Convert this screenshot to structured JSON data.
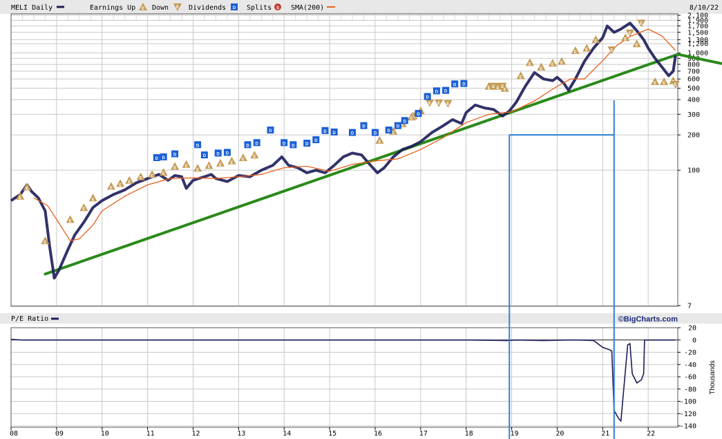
{
  "header": {
    "symbol_label": "MELI Daily",
    "earnings_up_label": "Earnings Up",
    "down_label": "Down",
    "dividends_label": "Dividends",
    "splits_label": "Splits",
    "sma_label": "SMA(200)",
    "date": "8/10/22",
    "earnings_icon": "E",
    "dividend_icon": "D",
    "split_icon": "S"
  },
  "pe_panel": {
    "label": "P/E Ratio",
    "brand": "©BigCharts.com",
    "unit_label": "Thousands"
  },
  "colors": {
    "price": "#1c1c5a",
    "sma": "#e8601c",
    "trendline": "#2a8a1a",
    "annotation": "#2f7fd6",
    "earnings": "#c49a52",
    "dividend": "#1a5fd6",
    "split": "#c0392b",
    "grid": "#c8c8c8",
    "header_bg": "#e8e8e8"
  },
  "chart_data": [
    {
      "type": "line",
      "title": "MELI Daily",
      "scale": "log",
      "ylim": [
        7,
        2100
      ],
      "xlim": [
        2008.0,
        2022.65
      ],
      "x_tick_labels": [
        "08",
        "09",
        "10",
        "11",
        "12",
        "13",
        "14",
        "15",
        "16",
        "17",
        "18",
        "19",
        "20",
        "21",
        "22"
      ],
      "x_ticks": [
        2008,
        2009,
        2010,
        2011,
        2012,
        2013,
        2014,
        2015,
        2016,
        2017,
        2018,
        2019,
        2020,
        2021,
        2022
      ],
      "y_ticks": [
        7,
        100,
        200,
        300,
        400,
        500,
        600,
        700,
        800,
        900,
        1000,
        1200,
        1300,
        1500,
        1700,
        1900,
        2100
      ],
      "y_tick_labels": [
        "7",
        "100",
        "200",
        "300",
        "400",
        "500",
        "600",
        "700",
        "800",
        "900",
        "1,000",
        "1,200",
        "1,300",
        "1,500",
        "1,700",
        "1,900",
        "2,100"
      ],
      "series": [
        {
          "name": "MELI Daily",
          "x": [
            2008.0,
            2008.2,
            2008.35,
            2008.45,
            2008.6,
            2008.75,
            2008.85,
            2008.95,
            2009.05,
            2009.25,
            2009.4,
            2009.6,
            2009.8,
            2010.0,
            2010.25,
            2010.5,
            2010.75,
            2011.0,
            2011.25,
            2011.45,
            2011.6,
            2011.75,
            2011.85,
            2012.0,
            2012.25,
            2012.4,
            2012.5,
            2012.75,
            2013.0,
            2013.25,
            2013.5,
            2013.75,
            2013.95,
            2014.1,
            2014.3,
            2014.5,
            2014.7,
            2014.9,
            2015.1,
            2015.3,
            2015.5,
            2015.7,
            2015.9,
            2016.05,
            2016.2,
            2016.4,
            2016.6,
            2016.8,
            2017.0,
            2017.25,
            2017.5,
            2017.7,
            2017.9,
            2018.0,
            2018.2,
            2018.4,
            2018.6,
            2018.8,
            2018.95,
            2019.1,
            2019.3,
            2019.5,
            2019.7,
            2019.9,
            2020.0,
            2020.15,
            2020.25,
            2020.4,
            2020.6,
            2020.8,
            2021.0,
            2021.1,
            2021.25,
            2021.4,
            2021.6,
            2021.75,
            2021.9,
            2022.0,
            2022.15,
            2022.3,
            2022.45,
            2022.55,
            2022.6
          ],
          "values": [
            55,
            62,
            75,
            66,
            58,
            45,
            22,
            12,
            14,
            21,
            28,
            36,
            48,
            55,
            62,
            68,
            78,
            85,
            92,
            82,
            90,
            88,
            70,
            82,
            88,
            92,
            85,
            80,
            90,
            88,
            100,
            110,
            130,
            110,
            105,
            95,
            100,
            95,
            110,
            130,
            140,
            135,
            110,
            95,
            105,
            130,
            150,
            160,
            175,
            210,
            240,
            270,
            250,
            310,
            360,
            340,
            330,
            290,
            320,
            380,
            520,
            680,
            600,
            580,
            620,
            550,
            480,
            600,
            850,
            1100,
            1350,
            1700,
            1500,
            1600,
            1800,
            1550,
            1300,
            1100,
            900,
            760,
            640,
            700,
            950
          ]
        },
        {
          "name": "SMA(200)",
          "x": [
            2008.5,
            2008.8,
            2009.0,
            2009.3,
            2009.5,
            2009.8,
            2010.0,
            2010.5,
            2011.0,
            2011.5,
            2012.0,
            2012.5,
            2013.0,
            2013.5,
            2014.0,
            2014.5,
            2015.0,
            2015.5,
            2016.0,
            2016.5,
            2017.0,
            2017.5,
            2018.0,
            2018.5,
            2019.0,
            2019.5,
            2020.0,
            2020.3,
            2020.6,
            2021.0,
            2021.3,
            2021.6,
            2022.0,
            2022.3,
            2022.6
          ],
          "values": [
            58,
            50,
            38,
            25,
            26,
            34,
            45,
            60,
            75,
            85,
            86,
            85,
            88,
            92,
            105,
            108,
            98,
            112,
            120,
            125,
            150,
            190,
            255,
            300,
            315,
            390,
            520,
            600,
            600,
            860,
            1150,
            1380,
            1600,
            1400,
            1050
          ]
        }
      ],
      "trendline": {
        "x": [
          2008.75,
          2022.65
        ],
        "values": [
          13,
          850
        ]
      },
      "annotations": {
        "vertical_lines_x": [
          2018.95,
          2021.25
        ],
        "horizontal_level": 200,
        "horizontal_from_x": 2018.95,
        "horizontal_to_x": 2021.25
      },
      "earnings_up": [
        {
          "x": 2008.2,
          "y": 60
        },
        {
          "x": 2008.35,
          "y": 72
        },
        {
          "x": 2008.75,
          "y": 25
        },
        {
          "x": 2009.3,
          "y": 38
        },
        {
          "x": 2009.6,
          "y": 48
        },
        {
          "x": 2009.8,
          "y": 58
        },
        {
          "x": 2010.2,
          "y": 73
        },
        {
          "x": 2010.4,
          "y": 77
        },
        {
          "x": 2010.6,
          "y": 82
        },
        {
          "x": 2010.85,
          "y": 88
        },
        {
          "x": 2011.1,
          "y": 92
        },
        {
          "x": 2011.35,
          "y": 96
        },
        {
          "x": 2011.6,
          "y": 108
        },
        {
          "x": 2011.85,
          "y": 112
        },
        {
          "x": 2012.1,
          "y": 104
        },
        {
          "x": 2012.35,
          "y": 110
        },
        {
          "x": 2012.6,
          "y": 115
        },
        {
          "x": 2012.85,
          "y": 120
        },
        {
          "x": 2013.1,
          "y": 128
        },
        {
          "x": 2013.35,
          "y": 135
        },
        {
          "x": 2016.1,
          "y": 180
        },
        {
          "x": 2016.4,
          "y": 215
        },
        {
          "x": 2016.6,
          "y": 250
        },
        {
          "x": 2016.8,
          "y": 285
        },
        {
          "x": 2017.0,
          "y": 322
        },
        {
          "x": 2018.5,
          "y": 520
        },
        {
          "x": 2018.7,
          "y": 520
        },
        {
          "x": 2018.85,
          "y": 500
        },
        {
          "x": 2019.2,
          "y": 640
        },
        {
          "x": 2019.4,
          "y": 830
        },
        {
          "x": 2019.65,
          "y": 760
        },
        {
          "x": 2019.9,
          "y": 820
        },
        {
          "x": 2020.1,
          "y": 850
        },
        {
          "x": 2020.4,
          "y": 1050
        },
        {
          "x": 2020.65,
          "y": 1100
        },
        {
          "x": 2020.85,
          "y": 1300
        },
        {
          "x": 2021.5,
          "y": 1350
        },
        {
          "x": 2021.75,
          "y": 1200
        },
        {
          "x": 2022.15,
          "y": 570
        },
        {
          "x": 2022.35,
          "y": 570
        },
        {
          "x": 2022.55,
          "y": 580
        }
      ],
      "earnings_down": [
        {
          "x": 2018.6,
          "y": 520
        },
        {
          "x": 2018.8,
          "y": 520
        },
        {
          "x": 2021.2,
          "y": 1060
        },
        {
          "x": 2021.6,
          "y": 1480
        },
        {
          "x": 2021.85,
          "y": 1800
        },
        {
          "x": 2022.6,
          "y": 540
        },
        {
          "x": 2017.2,
          "y": 375
        },
        {
          "x": 2017.4,
          "y": 375
        },
        {
          "x": 2017.6,
          "y": 370
        },
        {
          "x": 2016.9,
          "y": 290
        }
      ],
      "dividends": [
        {
          "x": 2011.2,
          "y": 128
        },
        {
          "x": 2011.35,
          "y": 130
        },
        {
          "x": 2011.6,
          "y": 138
        },
        {
          "x": 2012.1,
          "y": 165
        },
        {
          "x": 2012.25,
          "y": 135
        },
        {
          "x": 2012.55,
          "y": 140
        },
        {
          "x": 2012.75,
          "y": 142
        },
        {
          "x": 2013.2,
          "y": 165
        },
        {
          "x": 2013.4,
          "y": 172
        },
        {
          "x": 2013.7,
          "y": 220
        },
        {
          "x": 2014.0,
          "y": 172
        },
        {
          "x": 2014.2,
          "y": 165
        },
        {
          "x": 2014.5,
          "y": 170
        },
        {
          "x": 2014.7,
          "y": 182
        },
        {
          "x": 2014.9,
          "y": 218
        },
        {
          "x": 2015.1,
          "y": 212
        },
        {
          "x": 2015.5,
          "y": 210
        },
        {
          "x": 2015.75,
          "y": 240
        },
        {
          "x": 2016.0,
          "y": 210
        },
        {
          "x": 2016.3,
          "y": 220
        },
        {
          "x": 2016.5,
          "y": 240
        },
        {
          "x": 2016.65,
          "y": 265
        },
        {
          "x": 2016.95,
          "y": 305
        },
        {
          "x": 2017.15,
          "y": 425
        },
        {
          "x": 2017.35,
          "y": 475
        },
        {
          "x": 2017.55,
          "y": 480
        },
        {
          "x": 2017.75,
          "y": 545
        },
        {
          "x": 2017.95,
          "y": 550
        }
      ],
      "splits": []
    },
    {
      "type": "line",
      "title": "P/E Ratio",
      "ylabel": "Thousands",
      "ylim": [
        -140,
        20
      ],
      "y_ticks": [
        20,
        0,
        -20,
        -40,
        -60,
        -80,
        -100,
        -120,
        -140
      ],
      "series": [
        {
          "name": "P/E Ratio",
          "x": [
            2008.0,
            2008.25,
            2018.1,
            2018.9,
            2019.1,
            2019.7,
            2020.2,
            2020.5,
            2020.8,
            2021.0,
            2021.15,
            2021.2,
            2021.25,
            2021.35,
            2021.4,
            2021.55,
            2021.6,
            2021.65,
            2021.75,
            2021.85,
            2021.9,
            2021.92,
            2022.0,
            2022.6
          ],
          "values": [
            1,
            0,
            0,
            -1,
            0,
            -1,
            0,
            0,
            -1,
            -12,
            -16,
            -18,
            -115,
            -128,
            -132,
            -8,
            -6,
            -55,
            -70,
            -65,
            -55,
            0,
            0,
            0
          ]
        }
      ]
    }
  ]
}
